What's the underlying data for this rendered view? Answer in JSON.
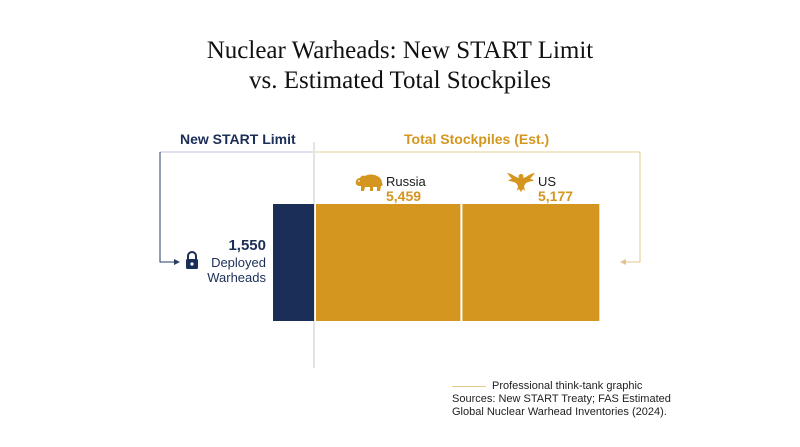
{
  "title": {
    "line1": "Nuclear Warheads: New START Limit",
    "line2": "vs. Estimated Total Stockpiles"
  },
  "headers": {
    "limit": "New START Limit",
    "stockpiles": "Total Stockpiles (Est.)"
  },
  "colors": {
    "navy": "#1b2e57",
    "gold": "#d4961f",
    "connector": "#e0c58a"
  },
  "icons": {
    "russia": "bear-icon",
    "us": "eagle-icon",
    "limit": "lock-icon"
  },
  "chart_data": {
    "type": "bar",
    "categories": [
      "New START Limit",
      "Russia",
      "US"
    ],
    "values": [
      1550,
      5459,
      5177
    ],
    "labels": {
      "limit_value": "1,550",
      "limit_text_line1": "Deployed",
      "limit_text_line2": "Warheads",
      "russia_name": "Russia",
      "russia_value": "5,459",
      "us_name": "US",
      "us_value": "5,177"
    },
    "title": "Nuclear Warheads: New START Limit vs. Estimated Total Stockpiles",
    "xlabel": "",
    "ylabel": "",
    "grid": false,
    "legend": "bottom-right"
  },
  "legend": {
    "line_label": "Professional think-tank graphic",
    "sources_line1": "Sources: New START Treaty; FAS Estimated",
    "sources_line2": "Global Nuclear Warhead Inventories (2024)."
  }
}
